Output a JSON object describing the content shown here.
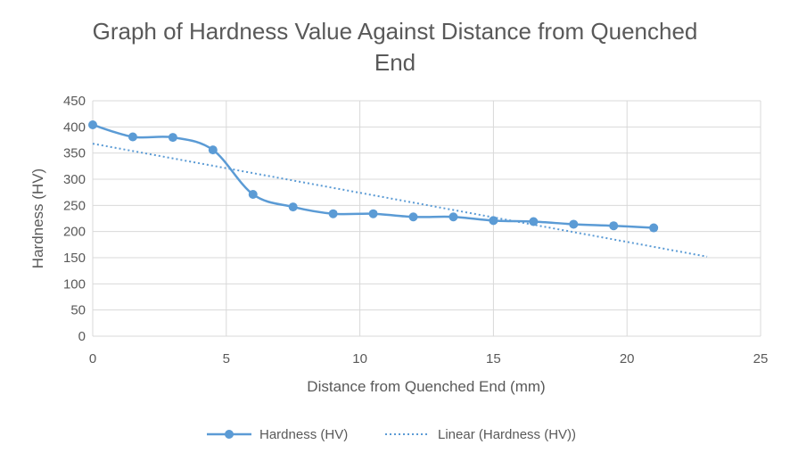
{
  "chart_data": {
    "type": "line",
    "title_lines": [
      "Graph of Hardness Value Against  Distance from Quenched",
      "End"
    ],
    "xlabel": "Distance from Quenched End (mm)",
    "ylabel": "Hardness (HV)",
    "xlim": [
      0,
      25
    ],
    "ylim": [
      0,
      450
    ],
    "xticks": [
      0,
      5,
      10,
      15,
      20,
      25
    ],
    "yticks": [
      0,
      50,
      100,
      150,
      200,
      250,
      300,
      350,
      400,
      450
    ],
    "grid": true,
    "legend_position": "bottom",
    "series": [
      {
        "name": "Hardness (HV)",
        "style": "smooth-line-with-markers",
        "color": "#5b9bd5",
        "x": [
          0,
          1.5,
          3,
          4.5,
          6,
          7.5,
          9,
          10.5,
          12,
          13.5,
          15,
          16.5,
          18,
          19.5,
          21
        ],
        "y": [
          404,
          381,
          380,
          356,
          271,
          247,
          234,
          234,
          228,
          228,
          221,
          219,
          214,
          211,
          207
        ]
      },
      {
        "name": "Linear (Hardness (HV))",
        "style": "dotted-trendline",
        "color": "#5b9bd5",
        "x": [
          0,
          23
        ],
        "y": [
          368,
          152
        ]
      }
    ]
  }
}
